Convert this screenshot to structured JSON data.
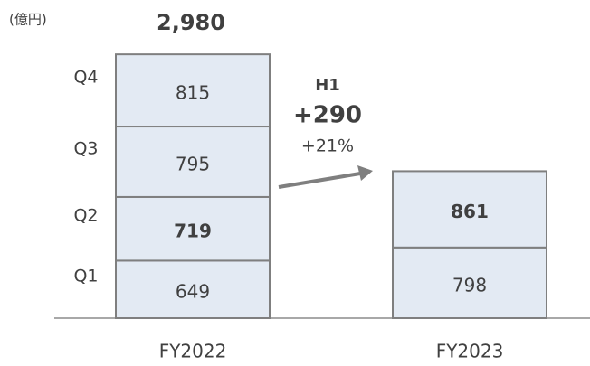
{
  "chart_data": {
    "type": "stacked_bar",
    "unit_label": "(億円)",
    "categories": [
      "FY2022",
      "FY2023"
    ],
    "series": [
      {
        "name": "Q1",
        "color": "#e3eaf3",
        "values": [
          649,
          798
        ]
      },
      {
        "name": "Q2",
        "color": "#e3eaf3",
        "values": [
          719,
          861
        ],
        "bold": true
      },
      {
        "name": "Q3",
        "color": "#e3eaf3",
        "values": [
          795,
          null
        ]
      },
      {
        "name": "Q4",
        "color": "#e3eaf3",
        "values": [
          815,
          null
        ]
      }
    ],
    "totals": [
      2980,
      null
    ],
    "total_labels": [
      "2,980",
      null
    ],
    "annotation": {
      "title": "H1",
      "change": "+290",
      "percent": "+21%"
    },
    "ylim": [
      0,
      3000
    ]
  }
}
